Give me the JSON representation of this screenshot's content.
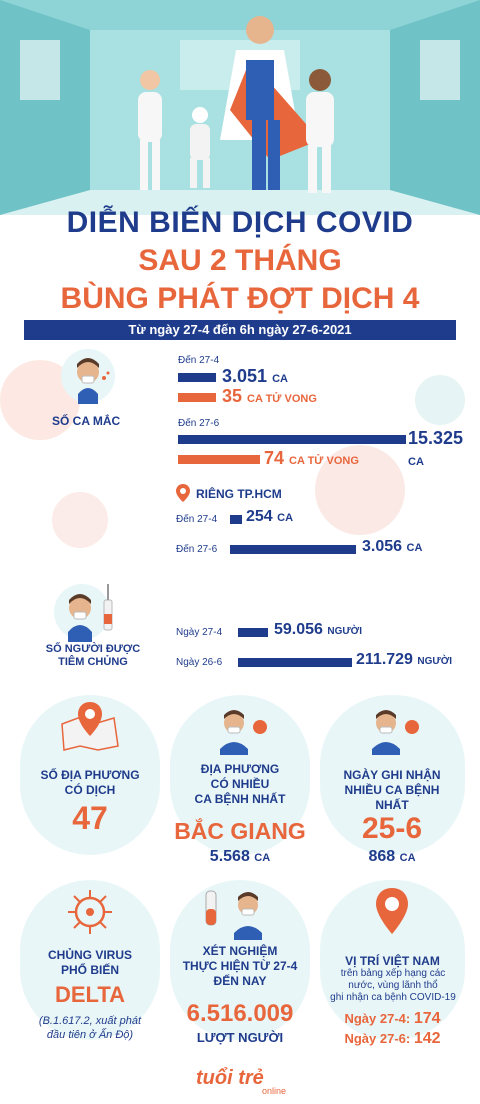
{
  "header": {
    "title_line1": "DIỄN BIẾN DỊCH COVID",
    "title_line2": "SAU 2 THÁNG",
    "title_line3": "BÙNG PHÁT ĐỢT DỊCH 4",
    "date_range": "Từ ngày 27-4 đến 6h ngày 27-6-2021"
  },
  "cases": {
    "label": "SỐ CA MẮC",
    "group1_label": "Đến 27-4",
    "group1_cases": "3.051",
    "group1_cases_unit": "CA",
    "group1_deaths": "35",
    "group1_deaths_unit": "CA TỬ VONG",
    "group2_label": "Đến 27-6",
    "group2_cases": "15.325",
    "group2_cases_unit": "CA",
    "group2_deaths": "74",
    "group2_deaths_unit": "CA TỬ VONG"
  },
  "hcm": {
    "title": "RIÊNG TP.HCM",
    "row1_label": "Đến 27-4",
    "row1_value": "254",
    "row1_unit": "CA",
    "row2_label": "Đến 27-6",
    "row2_value": "3.056",
    "row2_unit": "CA"
  },
  "vaccination": {
    "label_line1": "SỐ NGƯỜI ĐƯỢC",
    "label_line2": "TIÊM CHỦNG",
    "row1_label": "Ngày 27-4",
    "row1_value": "59.056",
    "row1_unit": "NGƯỜI",
    "row2_label": "Ngày 26-6",
    "row2_value": "211.729",
    "row2_unit": "NGƯỜI"
  },
  "stats": {
    "localities_line1": "SỐ ĐỊA PHƯƠNG",
    "localities_line2": "CÓ DỊCH",
    "localities_value": "47",
    "top_line1": "ĐỊA PHƯƠNG",
    "top_line2": "CÓ NHIỀU",
    "top_line3": "CA BỆNH NHẤT",
    "top_name": "BẮC GIANG",
    "top_value": "5.568",
    "top_unit": "CA",
    "peak_line1": "NGÀY GHI NHẬN",
    "peak_line2": "NHIỀU CA BỆNH",
    "peak_line3": "NHẤT",
    "peak_date": "25-6",
    "peak_value": "868",
    "peak_unit": "CA",
    "variant_line1": "CHỦNG VIRUS",
    "variant_line2": "PHỔ BIẾN",
    "variant_name": "DELTA",
    "variant_note_line1": "(B.1.617.2, xuất phát",
    "variant_note_line2": "đầu tiên ở Ấn Độ)",
    "tests_line1": "XÉT NGHIỆM",
    "tests_line2": "THỰC HIỆN TỪ 27-4",
    "tests_line3": "ĐẾN NAY",
    "tests_value": "6.516.009",
    "tests_unit": "LƯỢT NGƯỜI",
    "rank_title": "VỊ TRÍ VIỆT NAM",
    "rank_sub1": "trên bảng xếp hạng các",
    "rank_sub2": "nước, vùng lãnh thổ",
    "rank_sub3": "ghi nhận ca bệnh COVID-19",
    "rank_row1_label": "Ngày 27-4:",
    "rank_row1_value": "174",
    "rank_row2_label": "Ngày 27-6:",
    "rank_row2_value": "142"
  },
  "footer": {
    "brand": "tuổi trẻ",
    "brand_sub": "online"
  },
  "colors": {
    "navy": "#1f3c8c",
    "orange": "#e8663c",
    "teal": "#88ced2",
    "light_teal": "#e9f6f7"
  }
}
